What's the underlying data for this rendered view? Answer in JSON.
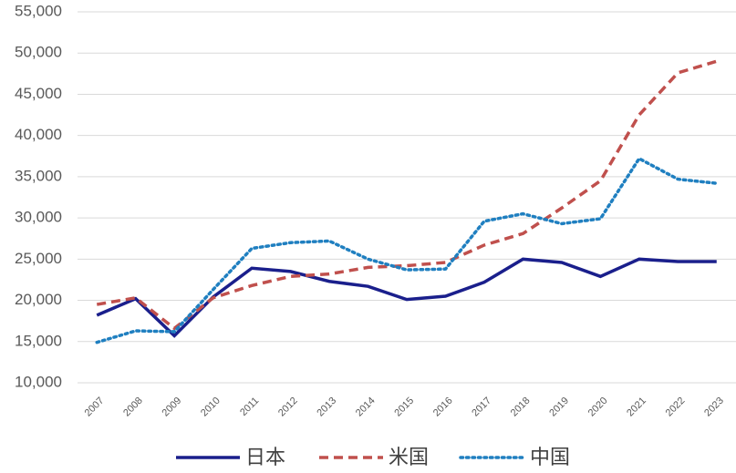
{
  "chart_data": {
    "type": "line",
    "categories": [
      "2007",
      "2008",
      "2009",
      "2010",
      "2011",
      "2012",
      "2013",
      "2014",
      "2015",
      "2016",
      "2017",
      "2018",
      "2019",
      "2020",
      "2021",
      "2022",
      "2023"
    ],
    "series": [
      {
        "name": "日本",
        "color": "#1a1f8c",
        "dash": "solid",
        "values": [
          18200,
          20200,
          15700,
          20400,
          23900,
          23500,
          22300,
          21700,
          20100,
          20500,
          22200,
          25000,
          24600,
          22900,
          25000,
          24700,
          24700
        ]
      },
      {
        "name": "米国",
        "color": "#c0504d",
        "dash": "dashed",
        "values": [
          19500,
          20300,
          16600,
          20300,
          21800,
          22900,
          23200,
          24000,
          24200,
          24600,
          26700,
          28100,
          31200,
          34500,
          42500,
          47600,
          49000
        ]
      },
      {
        "name": "中国",
        "color": "#1f7fc0",
        "dash": "dotted",
        "values": [
          14900,
          16300,
          16200,
          21300,
          26300,
          27000,
          27200,
          25000,
          23700,
          23800,
          29600,
          30500,
          29300,
          29900,
          37200,
          34700,
          34200
        ]
      }
    ],
    "ylim": [
      10000,
      55000
    ],
    "yticks": [
      {
        "value": 10000,
        "label": "10,000"
      },
      {
        "value": 15000,
        "label": "15,000"
      },
      {
        "value": 20000,
        "label": "20,000"
      },
      {
        "value": 25000,
        "label": "25,000"
      },
      {
        "value": 30000,
        "label": "30,000"
      },
      {
        "value": 35000,
        "label": "35,000"
      },
      {
        "value": 40000,
        "label": "40,000"
      },
      {
        "value": 45000,
        "label": "45,000"
      },
      {
        "value": 50000,
        "label": "50,000"
      },
      {
        "value": 55000,
        "label": "55,000"
      }
    ],
    "grid": true,
    "legend": "bottom"
  }
}
